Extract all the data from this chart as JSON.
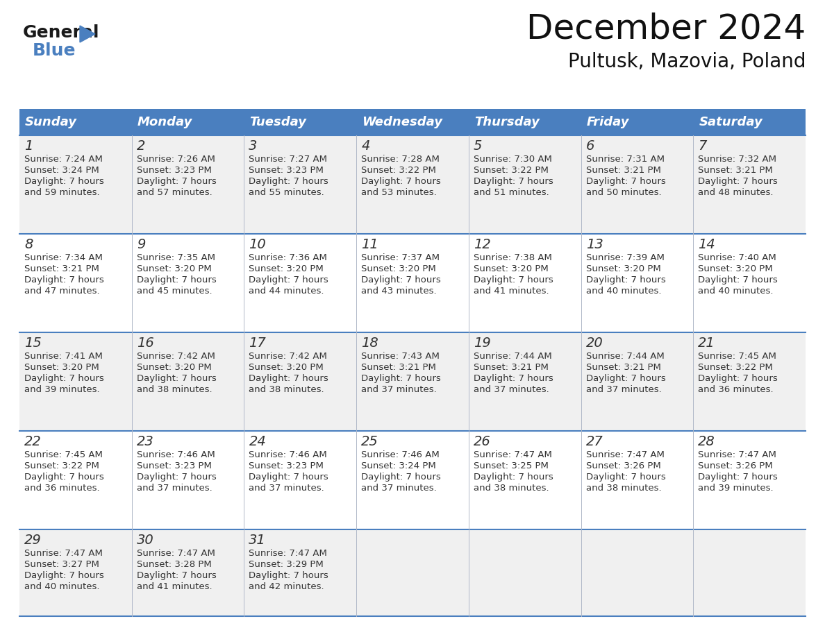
{
  "title": "December 2024",
  "subtitle": "Pultusk, Mazovia, Poland",
  "header_bg_color": "#4A7FBF",
  "header_text_color": "#FFFFFF",
  "row_bg_colors": [
    "#F0F0F0",
    "#FFFFFF"
  ],
  "border_color": "#4A7FBF",
  "text_color": "#333333",
  "day_headers": [
    "Sunday",
    "Monday",
    "Tuesday",
    "Wednesday",
    "Thursday",
    "Friday",
    "Saturday"
  ],
  "days": [
    {
      "day": 1,
      "col": 0,
      "row": 0,
      "sunrise": "7:24 AM",
      "sunset": "3:24 PM",
      "daylight_hours": 7,
      "daylight_minutes": 59
    },
    {
      "day": 2,
      "col": 1,
      "row": 0,
      "sunrise": "7:26 AM",
      "sunset": "3:23 PM",
      "daylight_hours": 7,
      "daylight_minutes": 57
    },
    {
      "day": 3,
      "col": 2,
      "row": 0,
      "sunrise": "7:27 AM",
      "sunset": "3:23 PM",
      "daylight_hours": 7,
      "daylight_minutes": 55
    },
    {
      "day": 4,
      "col": 3,
      "row": 0,
      "sunrise": "7:28 AM",
      "sunset": "3:22 PM",
      "daylight_hours": 7,
      "daylight_minutes": 53
    },
    {
      "day": 5,
      "col": 4,
      "row": 0,
      "sunrise": "7:30 AM",
      "sunset": "3:22 PM",
      "daylight_hours": 7,
      "daylight_minutes": 51
    },
    {
      "day": 6,
      "col": 5,
      "row": 0,
      "sunrise": "7:31 AM",
      "sunset": "3:21 PM",
      "daylight_hours": 7,
      "daylight_minutes": 50
    },
    {
      "day": 7,
      "col": 6,
      "row": 0,
      "sunrise": "7:32 AM",
      "sunset": "3:21 PM",
      "daylight_hours": 7,
      "daylight_minutes": 48
    },
    {
      "day": 8,
      "col": 0,
      "row": 1,
      "sunrise": "7:34 AM",
      "sunset": "3:21 PM",
      "daylight_hours": 7,
      "daylight_minutes": 47
    },
    {
      "day": 9,
      "col": 1,
      "row": 1,
      "sunrise": "7:35 AM",
      "sunset": "3:20 PM",
      "daylight_hours": 7,
      "daylight_minutes": 45
    },
    {
      "day": 10,
      "col": 2,
      "row": 1,
      "sunrise": "7:36 AM",
      "sunset": "3:20 PM",
      "daylight_hours": 7,
      "daylight_minutes": 44
    },
    {
      "day": 11,
      "col": 3,
      "row": 1,
      "sunrise": "7:37 AM",
      "sunset": "3:20 PM",
      "daylight_hours": 7,
      "daylight_minutes": 43
    },
    {
      "day": 12,
      "col": 4,
      "row": 1,
      "sunrise": "7:38 AM",
      "sunset": "3:20 PM",
      "daylight_hours": 7,
      "daylight_minutes": 41
    },
    {
      "day": 13,
      "col": 5,
      "row": 1,
      "sunrise": "7:39 AM",
      "sunset": "3:20 PM",
      "daylight_hours": 7,
      "daylight_minutes": 40
    },
    {
      "day": 14,
      "col": 6,
      "row": 1,
      "sunrise": "7:40 AM",
      "sunset": "3:20 PM",
      "daylight_hours": 7,
      "daylight_minutes": 40
    },
    {
      "day": 15,
      "col": 0,
      "row": 2,
      "sunrise": "7:41 AM",
      "sunset": "3:20 PM",
      "daylight_hours": 7,
      "daylight_minutes": 39
    },
    {
      "day": 16,
      "col": 1,
      "row": 2,
      "sunrise": "7:42 AM",
      "sunset": "3:20 PM",
      "daylight_hours": 7,
      "daylight_minutes": 38
    },
    {
      "day": 17,
      "col": 2,
      "row": 2,
      "sunrise": "7:42 AM",
      "sunset": "3:20 PM",
      "daylight_hours": 7,
      "daylight_minutes": 38
    },
    {
      "day": 18,
      "col": 3,
      "row": 2,
      "sunrise": "7:43 AM",
      "sunset": "3:21 PM",
      "daylight_hours": 7,
      "daylight_minutes": 37
    },
    {
      "day": 19,
      "col": 4,
      "row": 2,
      "sunrise": "7:44 AM",
      "sunset": "3:21 PM",
      "daylight_hours": 7,
      "daylight_minutes": 37
    },
    {
      "day": 20,
      "col": 5,
      "row": 2,
      "sunrise": "7:44 AM",
      "sunset": "3:21 PM",
      "daylight_hours": 7,
      "daylight_minutes": 37
    },
    {
      "day": 21,
      "col": 6,
      "row": 2,
      "sunrise": "7:45 AM",
      "sunset": "3:22 PM",
      "daylight_hours": 7,
      "daylight_minutes": 36
    },
    {
      "day": 22,
      "col": 0,
      "row": 3,
      "sunrise": "7:45 AM",
      "sunset": "3:22 PM",
      "daylight_hours": 7,
      "daylight_minutes": 36
    },
    {
      "day": 23,
      "col": 1,
      "row": 3,
      "sunrise": "7:46 AM",
      "sunset": "3:23 PM",
      "daylight_hours": 7,
      "daylight_minutes": 37
    },
    {
      "day": 24,
      "col": 2,
      "row": 3,
      "sunrise": "7:46 AM",
      "sunset": "3:23 PM",
      "daylight_hours": 7,
      "daylight_minutes": 37
    },
    {
      "day": 25,
      "col": 3,
      "row": 3,
      "sunrise": "7:46 AM",
      "sunset": "3:24 PM",
      "daylight_hours": 7,
      "daylight_minutes": 37
    },
    {
      "day": 26,
      "col": 4,
      "row": 3,
      "sunrise": "7:47 AM",
      "sunset": "3:25 PM",
      "daylight_hours": 7,
      "daylight_minutes": 38
    },
    {
      "day": 27,
      "col": 5,
      "row": 3,
      "sunrise": "7:47 AM",
      "sunset": "3:26 PM",
      "daylight_hours": 7,
      "daylight_minutes": 38
    },
    {
      "day": 28,
      "col": 6,
      "row": 3,
      "sunrise": "7:47 AM",
      "sunset": "3:26 PM",
      "daylight_hours": 7,
      "daylight_minutes": 39
    },
    {
      "day": 29,
      "col": 0,
      "row": 4,
      "sunrise": "7:47 AM",
      "sunset": "3:27 PM",
      "daylight_hours": 7,
      "daylight_minutes": 40
    },
    {
      "day": 30,
      "col": 1,
      "row": 4,
      "sunrise": "7:47 AM",
      "sunset": "3:28 PM",
      "daylight_hours": 7,
      "daylight_minutes": 41
    },
    {
      "day": 31,
      "col": 2,
      "row": 4,
      "sunrise": "7:47 AM",
      "sunset": "3:29 PM",
      "daylight_hours": 7,
      "daylight_minutes": 42
    }
  ],
  "logo_general_color": "#1a1a1a",
  "logo_blue_color": "#4A7FBF",
  "title_fontsize": 36,
  "subtitle_fontsize": 20,
  "header_fontsize": 13,
  "day_number_fontsize": 14,
  "cell_text_fontsize": 9.5
}
